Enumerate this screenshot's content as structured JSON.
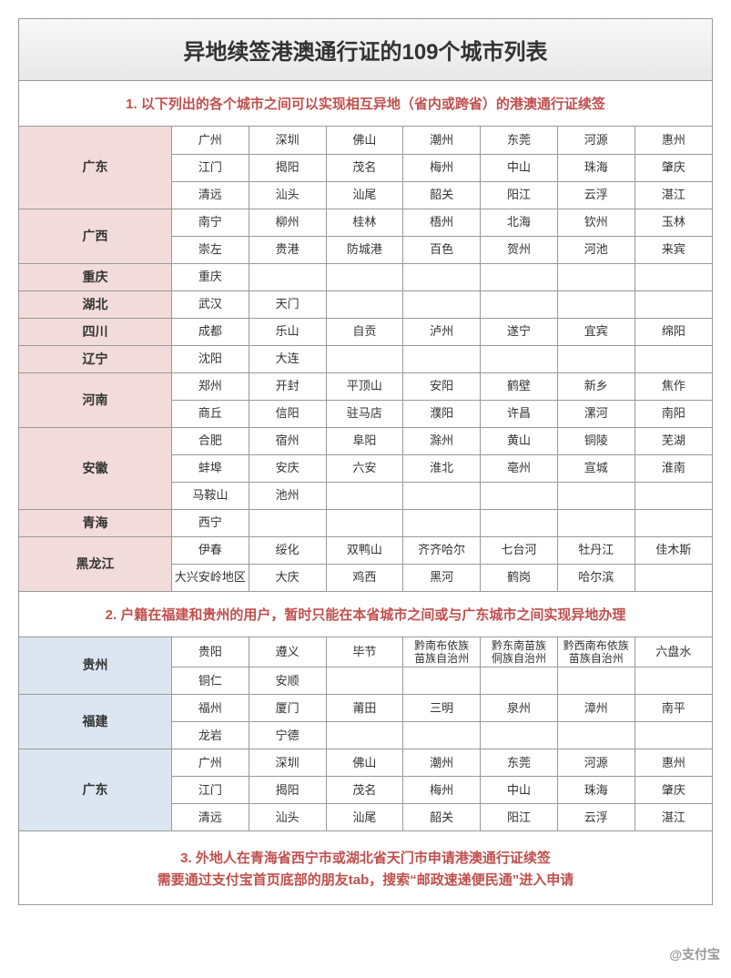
{
  "title": "异地续签港澳通行证的109个城市列表",
  "colors": {
    "header_text": "#c0504d",
    "pink_bg": "#f2dcdb",
    "blue_bg": "#dce6f1",
    "border": "#999999",
    "text": "#333333"
  },
  "section1": {
    "header": "1. 以下列出的各个城市之间可以实现相互异地（省内或跨省）的港澳通行证续签",
    "provinces": [
      {
        "name": "广东",
        "rows": [
          [
            "广州",
            "深圳",
            "佛山",
            "潮州",
            "东莞",
            "河源",
            "惠州"
          ],
          [
            "江门",
            "揭阳",
            "茂名",
            "梅州",
            "中山",
            "珠海",
            "肇庆"
          ],
          [
            "清远",
            "汕头",
            "汕尾",
            "韶关",
            "阳江",
            "云浮",
            "湛江"
          ]
        ]
      },
      {
        "name": "广西",
        "rows": [
          [
            "南宁",
            "柳州",
            "桂林",
            "梧州",
            "北海",
            "钦州",
            "玉林"
          ],
          [
            "崇左",
            "贵港",
            "防城港",
            "百色",
            "贺州",
            "河池",
            "来宾"
          ]
        ]
      },
      {
        "name": "重庆",
        "rows": [
          [
            "重庆",
            "",
            "",
            "",
            "",
            "",
            ""
          ]
        ]
      },
      {
        "name": "湖北",
        "rows": [
          [
            "武汉",
            "天门",
            "",
            "",
            "",
            "",
            ""
          ]
        ]
      },
      {
        "name": "四川",
        "rows": [
          [
            "成都",
            "乐山",
            "自贡",
            "泸州",
            "遂宁",
            "宜宾",
            "绵阳"
          ]
        ]
      },
      {
        "name": "辽宁",
        "rows": [
          [
            "沈阳",
            "大连",
            "",
            "",
            "",
            "",
            ""
          ]
        ]
      },
      {
        "name": "河南",
        "rows": [
          [
            "郑州",
            "开封",
            "平顶山",
            "安阳",
            "鹤壁",
            "新乡",
            "焦作"
          ],
          [
            "商丘",
            "信阳",
            "驻马店",
            "濮阳",
            "许昌",
            "漯河",
            "南阳"
          ]
        ]
      },
      {
        "name": "安徽",
        "rows": [
          [
            "合肥",
            "宿州",
            "阜阳",
            "滁州",
            "黄山",
            "铜陵",
            "芜湖"
          ],
          [
            "蚌埠",
            "安庆",
            "六安",
            "淮北",
            "亳州",
            "宣城",
            "淮南"
          ],
          [
            "马鞍山",
            "池州",
            "",
            "",
            "",
            "",
            ""
          ]
        ]
      },
      {
        "name": "青海",
        "rows": [
          [
            "西宁",
            "",
            "",
            "",
            "",
            "",
            ""
          ]
        ]
      },
      {
        "name": "黑龙江",
        "rows": [
          [
            "伊春",
            "绥化",
            "双鸭山",
            "齐齐哈尔",
            "七台河",
            "牡丹江",
            "佳木斯"
          ],
          [
            "大兴安岭地区",
            "大庆",
            "鸡西",
            "黑河",
            "鹤岗",
            "哈尔滨",
            ""
          ]
        ]
      }
    ]
  },
  "section2": {
    "header": "2. 户籍在福建和贵州的用户，暂时只能在本省城市之间或与广东城市之间实现异地办理",
    "provinces": [
      {
        "name": "贵州",
        "rows": [
          [
            "贵阳",
            "遵义",
            "毕节",
            "黔南布依族\n苗族自治州",
            "黔东南苗族\n侗族自治州",
            "黔西南布依族\n苗族自治州",
            "六盘水"
          ],
          [
            "铜仁",
            "安顺",
            "",
            "",
            "",
            "",
            ""
          ]
        ]
      },
      {
        "name": "福建",
        "rows": [
          [
            "福州",
            "厦门",
            "莆田",
            "三明",
            "泉州",
            "漳州",
            "南平"
          ],
          [
            "龙岩",
            "宁德",
            "",
            "",
            "",
            "",
            ""
          ]
        ]
      },
      {
        "name": "广东",
        "rows": [
          [
            "广州",
            "深圳",
            "佛山",
            "潮州",
            "东莞",
            "河源",
            "惠州"
          ],
          [
            "江门",
            "揭阳",
            "茂名",
            "梅州",
            "中山",
            "珠海",
            "肇庆"
          ],
          [
            "清远",
            "汕头",
            "汕尾",
            "韶关",
            "阳江",
            "云浮",
            "湛江"
          ]
        ]
      }
    ]
  },
  "section3": {
    "line1": "3. 外地人在青海省西宁市或湖北省天门市申请港澳通行证续签",
    "line2": "需要通过支付宝首页底部的朋友tab，搜索“邮政速递便民通”进入申请"
  },
  "watermark": "@支付宝"
}
